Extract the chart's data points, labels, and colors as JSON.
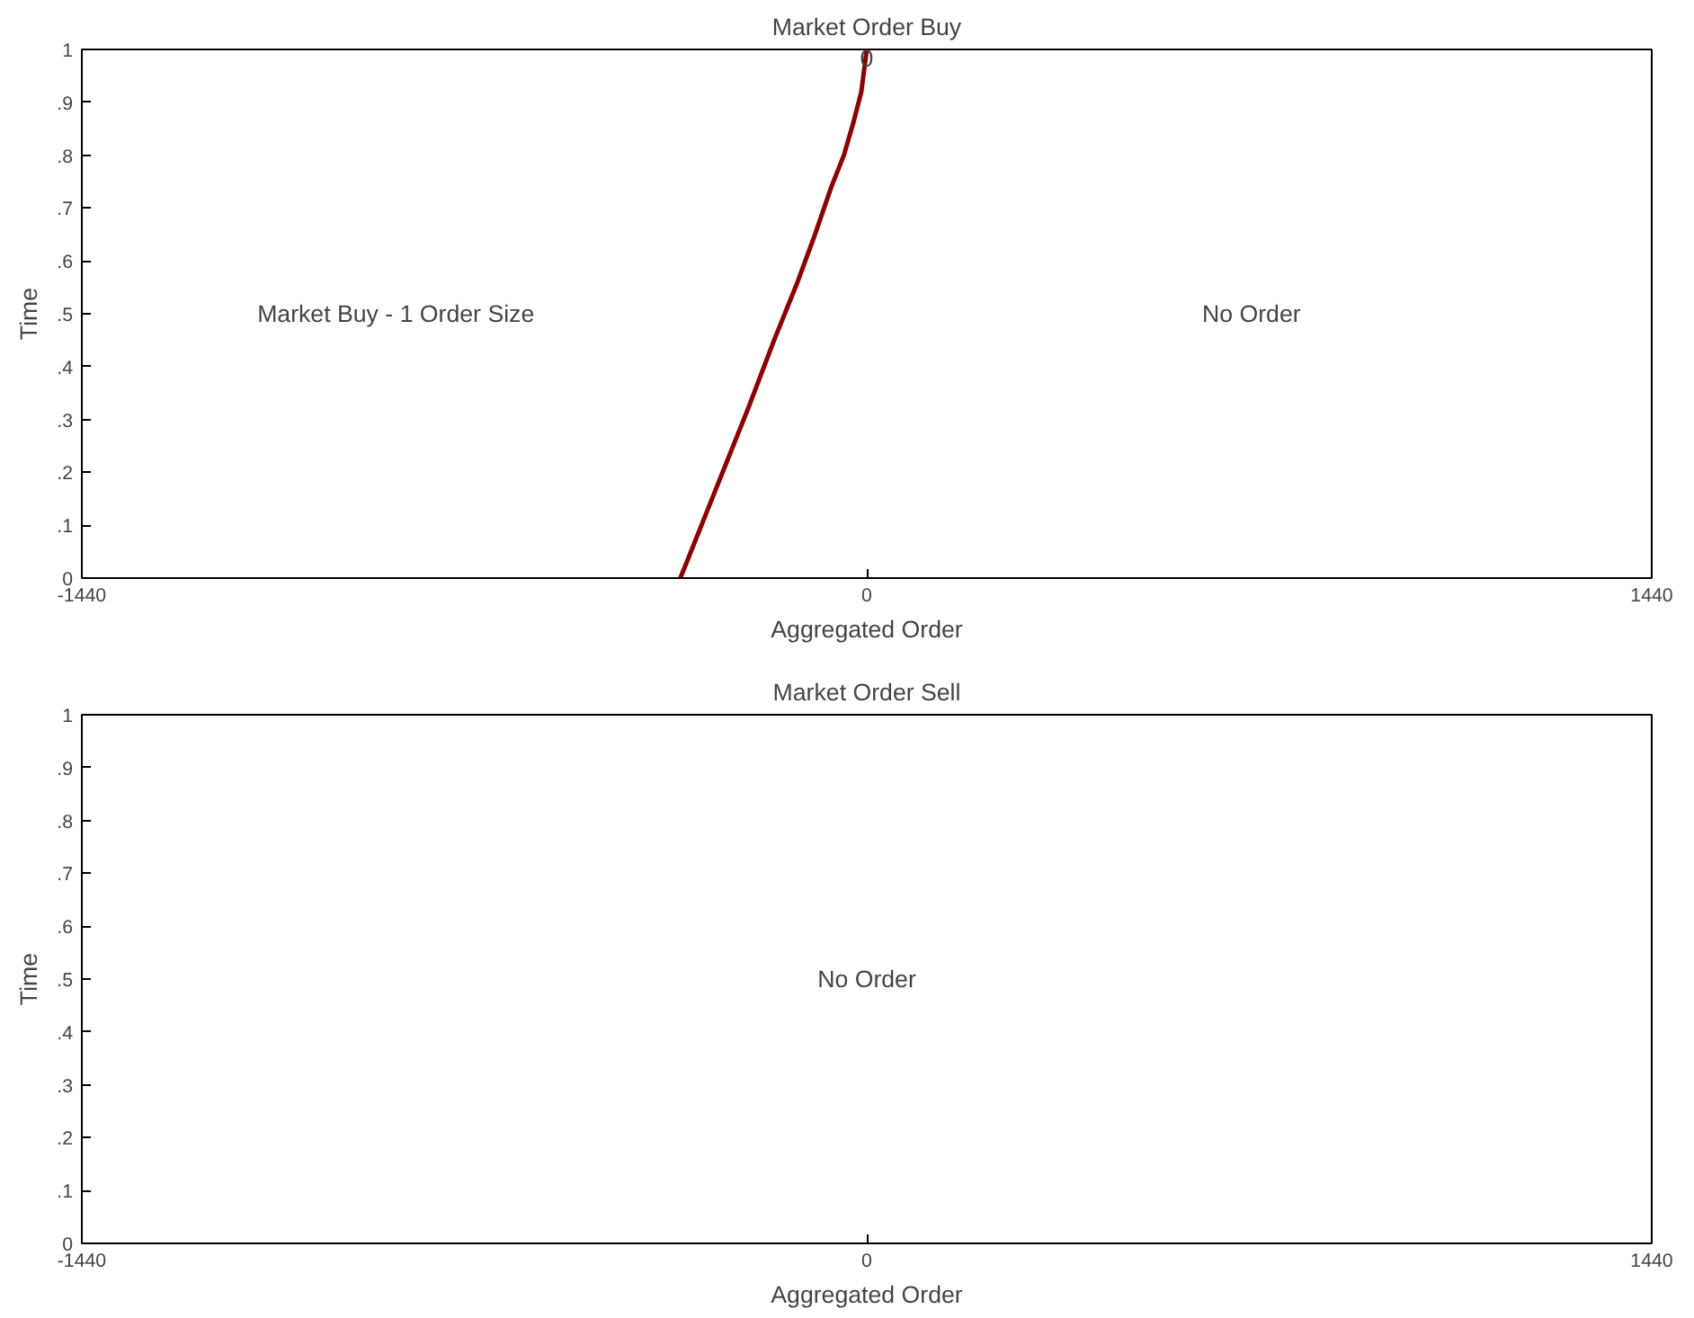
{
  "chart_data": [
    {
      "type": "line",
      "title": "Market Order Buy",
      "xlabel": "Aggregated Order",
      "ylabel": "Time",
      "series": [
        {
          "color": "#8b0000",
          "x": [
            -342,
            -280,
            -218,
            -170,
            -127,
            -95,
            -65,
            -42,
            -25,
            -10,
            0
          ],
          "values": [
            0,
            0.16,
            0.32,
            0.45,
            0.56,
            0.65,
            0.74,
            0.8,
            0.86,
            0.92,
            1
          ]
        }
      ],
      "xlim": [
        -1440,
        1440
      ],
      "ylim": [
        0,
        1
      ],
      "xticks": [
        -1440,
        0,
        1440
      ],
      "yticks": [
        0,
        {
          "value": 0.1,
          "label": ".1"
        },
        {
          "value": 0.2,
          "label": ".2"
        },
        {
          "value": 0.3,
          "label": ".3"
        },
        {
          "value": 0.4,
          "label": ".4"
        },
        {
          "value": 0.5,
          "label": ".5"
        },
        {
          "value": 0.6,
          "label": ".6"
        },
        {
          "value": 0.7,
          "label": ".7"
        },
        {
          "value": 0.8,
          "label": ".8"
        },
        {
          "value": 0.9,
          "label": ".9"
        },
        1
      ],
      "grid": false,
      "marker": "none",
      "line_style": "solid",
      "annotations": [
        "Market Buy - 1 Order Size",
        "No Order",
        {
          "text": "0",
          "x": 0,
          "y": 0.985
        }
      ]
    },
    {
      "type": "line",
      "title": "Market Order Sell",
      "xlabel": "Aggregated Order",
      "ylabel": "Time",
      "xlim": [
        -1440,
        1440
      ],
      "ylim": [
        0,
        1
      ],
      "xticks": [
        -1440,
        0,
        1440
      ],
      "yticks": [
        0,
        {
          "value": 0.1,
          "label": ".1"
        },
        {
          "value": 0.2,
          "label": ".2"
        },
        {
          "value": 0.3,
          "label": ".3"
        },
        {
          "value": 0.4,
          "label": ".4"
        },
        {
          "value": 0.5,
          "label": ".5"
        },
        {
          "value": 0.6,
          "label": ".6"
        },
        {
          "value": 0.7,
          "label": ".7"
        },
        {
          "value": 0.8,
          "label": ".8"
        },
        {
          "value": 0.9,
          "label": ".9"
        },
        1
      ],
      "grid": false,
      "annotations": [
        "No Order"
      ]
    }
  ]
}
